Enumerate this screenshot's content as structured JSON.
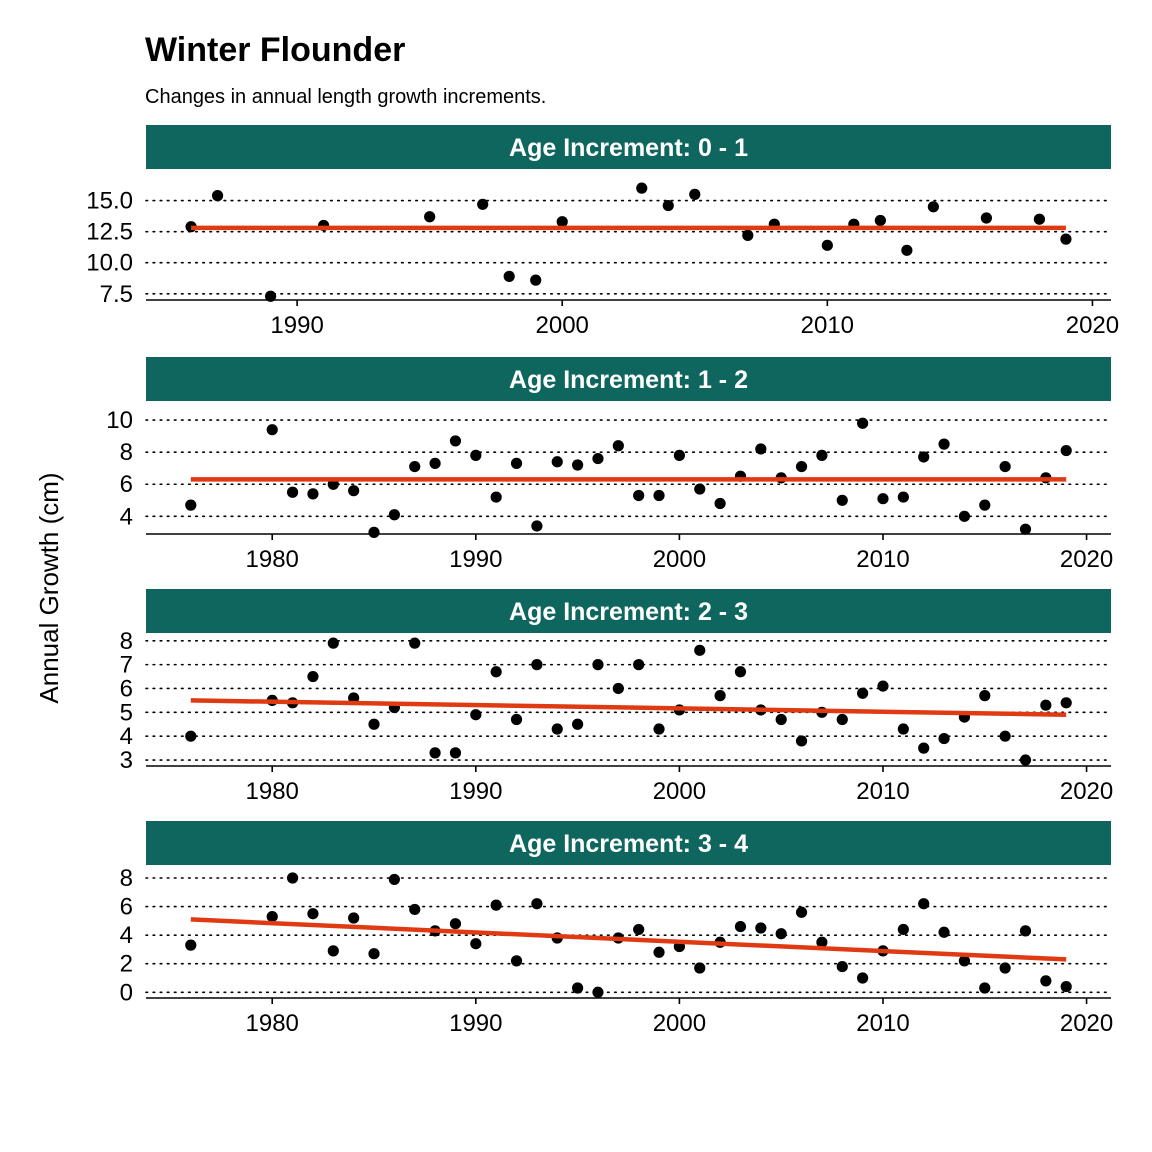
{
  "title": "Winter Flounder",
  "subtitle": "Changes in annual length growth increments.",
  "colors": {
    "strip": "#0e665e",
    "trend": "#e03a12",
    "point": "#000000"
  },
  "chart_data": {
    "type": "scatter",
    "ylabel": "Annual Growth  (cm)",
    "grid": "horizontal dotted",
    "panels": [
      {
        "strip": "Age Increment: 0 - 1",
        "xlim": [
          1984.3,
          2020.7
        ],
        "ylim": [
          7.0,
          17.3
        ],
        "xticks": [
          1990,
          2000,
          2010,
          2020
        ],
        "yticks": [
          7.5,
          10.0,
          12.5,
          15.0
        ],
        "ytick_labels": [
          "7.5",
          "10.0",
          "12.5",
          "15.0"
        ],
        "points": [
          [
            1986,
            12.9
          ],
          [
            1987,
            15.4
          ],
          [
            1989,
            7.3
          ],
          [
            1991,
            13.0
          ],
          [
            1995,
            13.7
          ],
          [
            1997,
            14.7
          ],
          [
            1998,
            8.9
          ],
          [
            1999,
            8.6
          ],
          [
            2000,
            13.3
          ],
          [
            2003,
            16.0
          ],
          [
            2004,
            14.6
          ],
          [
            2005,
            15.5
          ],
          [
            2007,
            12.2
          ],
          [
            2008,
            13.1
          ],
          [
            2010,
            11.4
          ],
          [
            2011,
            13.1
          ],
          [
            2012,
            13.4
          ],
          [
            2013,
            11.0
          ],
          [
            2014,
            14.5
          ],
          [
            2016,
            13.6
          ],
          [
            2018,
            13.5
          ],
          [
            2019,
            11.9
          ]
        ],
        "trend": [
          [
            1986,
            12.8
          ],
          [
            2019,
            12.8
          ]
        ]
      },
      {
        "strip": "Age Increment: 1 - 2",
        "xlim": [
          1973.8,
          2021.2
        ],
        "ylim": [
          2.9,
          11.0
        ],
        "xticks": [
          1980,
          1990,
          2000,
          2010,
          2020
        ],
        "yticks": [
          4,
          6,
          8,
          10
        ],
        "ytick_labels": [
          "4",
          "6",
          "8",
          "10"
        ],
        "points": [
          [
            1976,
            4.7
          ],
          [
            1980,
            9.4
          ],
          [
            1981,
            5.5
          ],
          [
            1982,
            5.4
          ],
          [
            1983,
            6.0
          ],
          [
            1984,
            5.6
          ],
          [
            1985,
            3.0
          ],
          [
            1986,
            4.1
          ],
          [
            1987,
            7.1
          ],
          [
            1988,
            7.3
          ],
          [
            1989,
            8.7
          ],
          [
            1990,
            7.8
          ],
          [
            1991,
            5.2
          ],
          [
            1992,
            7.3
          ],
          [
            1993,
            3.4
          ],
          [
            1994,
            7.4
          ],
          [
            1995,
            7.2
          ],
          [
            1996,
            7.6
          ],
          [
            1997,
            8.4
          ],
          [
            1998,
            5.3
          ],
          [
            1999,
            5.3
          ],
          [
            2000,
            7.8
          ],
          [
            2001,
            5.7
          ],
          [
            2002,
            4.8
          ],
          [
            2003,
            6.5
          ],
          [
            2004,
            8.2
          ],
          [
            2005,
            6.4
          ],
          [
            2006,
            7.1
          ],
          [
            2007,
            7.8
          ],
          [
            2008,
            5.0
          ],
          [
            2009,
            9.8
          ],
          [
            2010,
            5.1
          ],
          [
            2011,
            5.2
          ],
          [
            2012,
            7.7
          ],
          [
            2013,
            8.5
          ],
          [
            2014,
            4.0
          ],
          [
            2015,
            4.7
          ],
          [
            2016,
            7.1
          ],
          [
            2017,
            3.2
          ],
          [
            2018,
            6.4
          ],
          [
            2019,
            8.1
          ]
        ],
        "trend": [
          [
            1976,
            6.3
          ],
          [
            2019,
            6.3
          ]
        ]
      },
      {
        "strip": "Age Increment: 2 - 3",
        "xlim": [
          1973.8,
          2021.2
        ],
        "ylim": [
          2.75,
          8.2
        ],
        "xticks": [
          1980,
          1990,
          2000,
          2010,
          2020
        ],
        "yticks": [
          3,
          4,
          5,
          6,
          7,
          8
        ],
        "ytick_labels": [
          "3",
          "4",
          "5",
          "6",
          "7",
          "8"
        ],
        "points": [
          [
            1976,
            4.0
          ],
          [
            1980,
            5.5
          ],
          [
            1981,
            5.4
          ],
          [
            1982,
            6.5
          ],
          [
            1983,
            7.9
          ],
          [
            1984,
            5.6
          ],
          [
            1985,
            4.5
          ],
          [
            1986,
            5.2
          ],
          [
            1987,
            7.9
          ],
          [
            1988,
            3.3
          ],
          [
            1989,
            3.3
          ],
          [
            1990,
            4.9
          ],
          [
            1991,
            6.7
          ],
          [
            1992,
            4.7
          ],
          [
            1993,
            7.0
          ],
          [
            1994,
            4.3
          ],
          [
            1995,
            4.5
          ],
          [
            1996,
            7.0
          ],
          [
            1997,
            6.0
          ],
          [
            1998,
            7.0
          ],
          [
            1999,
            4.3
          ],
          [
            2000,
            5.1
          ],
          [
            2001,
            7.6
          ],
          [
            2002,
            5.7
          ],
          [
            2003,
            6.7
          ],
          [
            2004,
            5.1
          ],
          [
            2005,
            4.7
          ],
          [
            2006,
            3.8
          ],
          [
            2007,
            5.0
          ],
          [
            2008,
            4.7
          ],
          [
            2009,
            5.8
          ],
          [
            2010,
            6.1
          ],
          [
            2011,
            4.3
          ],
          [
            2012,
            3.5
          ],
          [
            2013,
            3.9
          ],
          [
            2014,
            4.8
          ],
          [
            2015,
            5.7
          ],
          [
            2016,
            4.0
          ],
          [
            2017,
            3.0
          ],
          [
            2018,
            5.3
          ],
          [
            2019,
            5.4
          ]
        ],
        "trend": [
          [
            1976,
            5.5
          ],
          [
            2019,
            4.9
          ]
        ]
      },
      {
        "strip": "Age Increment: 3 - 4",
        "xlim": [
          1973.8,
          2021.2
        ],
        "ylim": [
          -0.4,
          8.7
        ],
        "xticks": [
          1980,
          1990,
          2000,
          2010,
          2020
        ],
        "yticks": [
          0,
          2,
          4,
          6,
          8
        ],
        "ytick_labels": [
          "0",
          "2",
          "4",
          "6",
          "8"
        ],
        "points": [
          [
            1976,
            3.3
          ],
          [
            1980,
            5.3
          ],
          [
            1981,
            8.0
          ],
          [
            1982,
            5.5
          ],
          [
            1983,
            2.9
          ],
          [
            1984,
            5.2
          ],
          [
            1985,
            2.7
          ],
          [
            1986,
            7.9
          ],
          [
            1987,
            5.8
          ],
          [
            1988,
            4.3
          ],
          [
            1989,
            4.8
          ],
          [
            1990,
            3.4
          ],
          [
            1991,
            6.1
          ],
          [
            1992,
            2.2
          ],
          [
            1993,
            6.2
          ],
          [
            1994,
            3.8
          ],
          [
            1995,
            0.3
          ],
          [
            1996,
            0.0
          ],
          [
            1997,
            3.8
          ],
          [
            1998,
            4.4
          ],
          [
            1999,
            2.8
          ],
          [
            2000,
            3.2
          ],
          [
            2001,
            1.7
          ],
          [
            2002,
            3.5
          ],
          [
            2003,
            4.6
          ],
          [
            2004,
            4.5
          ],
          [
            2005,
            4.1
          ],
          [
            2006,
            5.6
          ],
          [
            2007,
            3.5
          ],
          [
            2008,
            1.8
          ],
          [
            2009,
            1.0
          ],
          [
            2010,
            2.9
          ],
          [
            2011,
            4.4
          ],
          [
            2012,
            6.2
          ],
          [
            2013,
            4.2
          ],
          [
            2014,
            2.2
          ],
          [
            2015,
            0.3
          ],
          [
            2016,
            1.7
          ],
          [
            2017,
            4.3
          ],
          [
            2018,
            0.8
          ],
          [
            2019,
            0.4
          ]
        ],
        "trend": [
          [
            1976,
            5.1
          ],
          [
            2019,
            2.3
          ]
        ]
      }
    ]
  }
}
